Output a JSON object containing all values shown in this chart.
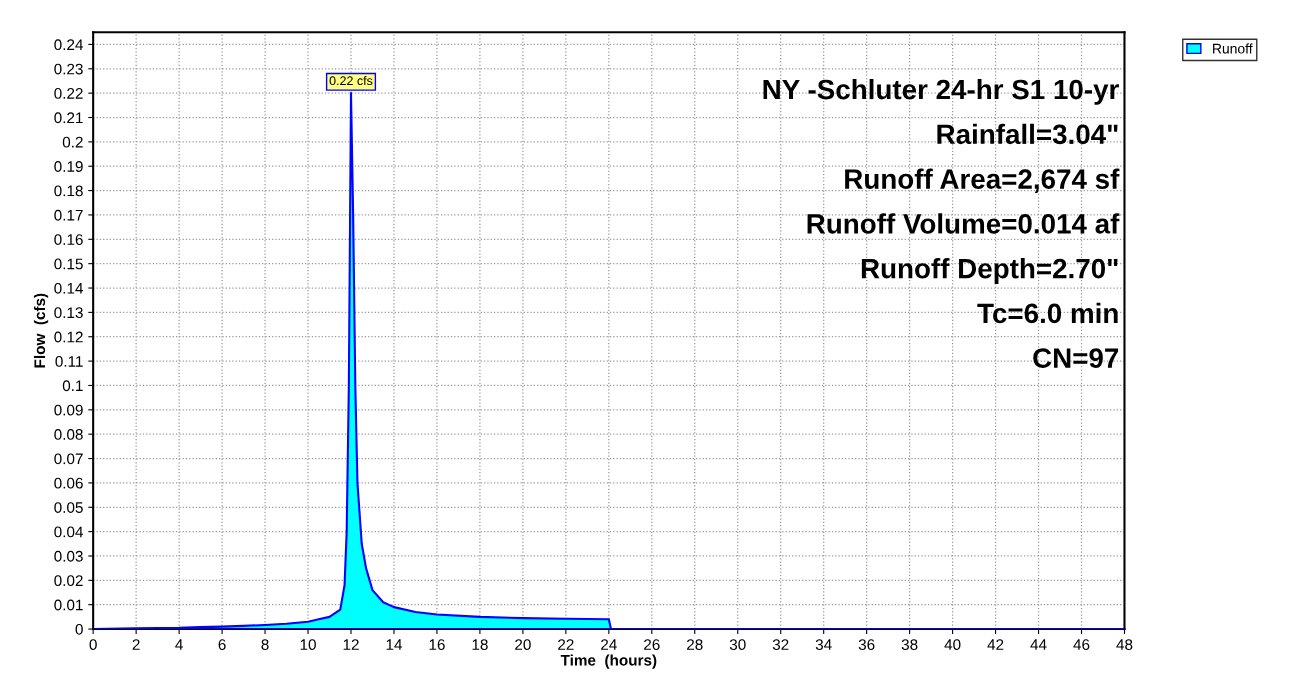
{
  "chart_data": {
    "type": "area",
    "xlabel": "Time  (hours)",
    "ylabel": "Flow  (cfs)",
    "x": [
      0,
      2,
      4,
      5,
      6,
      7,
      8,
      9,
      10,
      10.5,
      11,
      11.5,
      11.7,
      11.8,
      11.9,
      12.0,
      12.1,
      12.2,
      12.3,
      12.5,
      12.7,
      13,
      13.5,
      14,
      15,
      16,
      18,
      20,
      22,
      24,
      24.1,
      48
    ],
    "series": [
      {
        "name": "Runoff",
        "color": "#00ffff",
        "values": [
          0,
          0.0003,
          0.0005,
          0.0008,
          0.001,
          0.0013,
          0.0017,
          0.0022,
          0.003,
          0.004,
          0.005,
          0.008,
          0.018,
          0.04,
          0.1,
          0.22,
          0.17,
          0.1,
          0.06,
          0.035,
          0.025,
          0.016,
          0.011,
          0.009,
          0.007,
          0.006,
          0.005,
          0.0045,
          0.0042,
          0.004,
          0,
          0
        ]
      }
    ],
    "xlim": [
      0,
      48
    ],
    "ylim": [
      0,
      0.245
    ],
    "xticks": [
      0,
      2,
      4,
      6,
      8,
      10,
      12,
      14,
      16,
      18,
      20,
      22,
      24,
      26,
      28,
      30,
      32,
      34,
      36,
      38,
      40,
      42,
      44,
      46,
      48
    ],
    "yticks": [
      0,
      0.01,
      0.02,
      0.03,
      0.04,
      0.05,
      0.06,
      0.07,
      0.08,
      0.09,
      0.1,
      0.11,
      0.12,
      0.13,
      0.14,
      0.15,
      0.16,
      0.17,
      0.18,
      0.19,
      0.2,
      0.21,
      0.22,
      0.23,
      0.24
    ],
    "grid": true,
    "legend": "top right",
    "annotations": [
      {
        "text": "0.22 cfs",
        "x": 12,
        "y": 0.22
      },
      "NY -Schluter 24-hr S1 10-yr",
      "Rainfall=3.04\"",
      "Runoff Area=2,674 sf",
      "Runoff Volume=0.014 af",
      "Runoff Depth=2.70\"",
      "Tc=6.0 min",
      "CN=97"
    ]
  }
}
